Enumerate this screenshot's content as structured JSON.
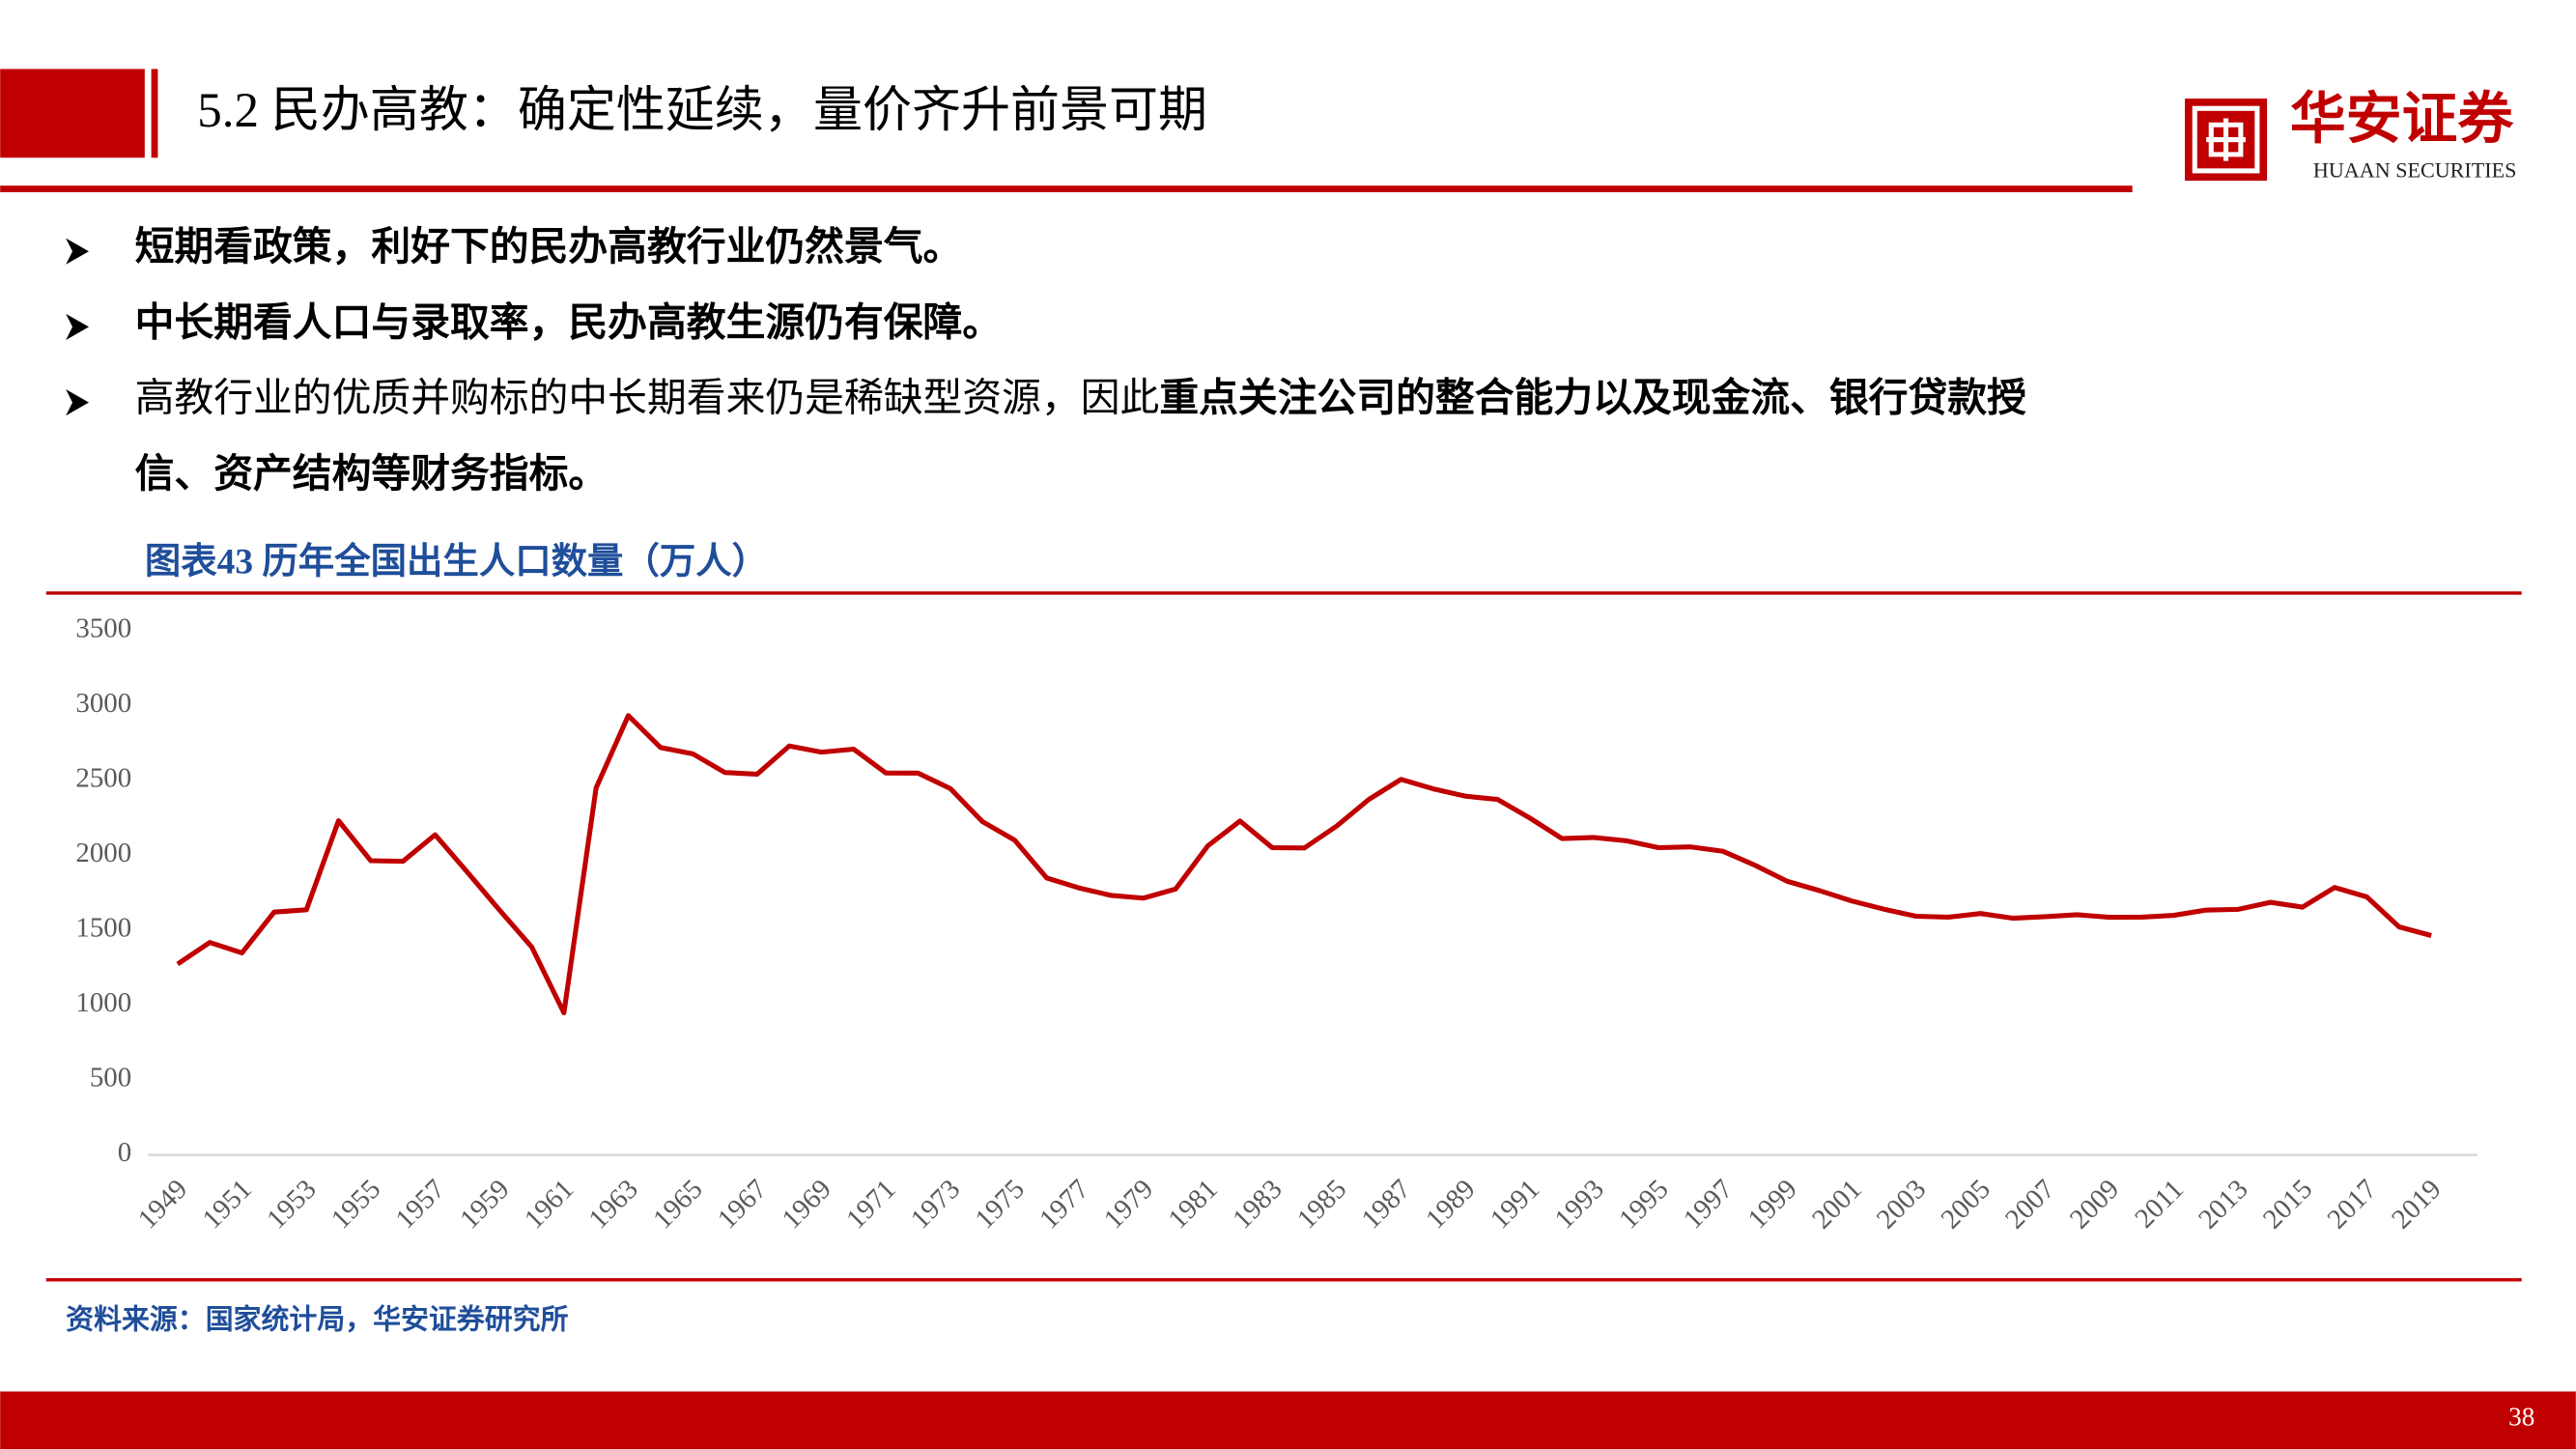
{
  "header": {
    "title": "5.2 民办高教：确定性延续，量价齐升前景可期"
  },
  "logo": {
    "name": "华安证券",
    "subtitle": "HUAAN SECURITIES"
  },
  "bullets": [
    [
      [
        {
          "text": "短期看政策，利好下的民办高教行业仍然景气。",
          "bold": true
        }
      ]
    ],
    [
      [
        {
          "text": "中长期看人口与录取率，民办高教生源仍有保障。",
          "bold": true
        }
      ]
    ],
    [
      [
        {
          "text": "高教行业的优质并购标的中长期看来仍是稀缺型资源，因此",
          "bold": false
        },
        {
          "text": "重点关注公司的整合能力以及现金流、银行贷款授",
          "bold": true
        }
      ],
      [
        {
          "text": "信、资产结构等财务指标。",
          "bold": true
        }
      ]
    ]
  ],
  "chart_data": {
    "type": "line",
    "title": "图表43  历年全国出生人口数量（万人）",
    "categories": [
      "1949",
      null,
      "1951",
      null,
      "1953",
      null,
      "1955",
      null,
      "1957",
      null,
      "1959",
      null,
      "1961",
      null,
      "1963",
      null,
      "1965",
      null,
      "1967",
      null,
      "1969",
      null,
      "1971",
      null,
      "1973",
      null,
      "1975",
      null,
      "1977",
      null,
      "1979",
      null,
      "1981",
      null,
      "1983",
      null,
      "1985",
      null,
      "1987",
      null,
      "1989",
      null,
      "1991",
      null,
      "1993",
      null,
      "1995",
      null,
      "1997",
      null,
      "1999",
      null,
      "2001",
      null,
      "2003",
      null,
      "2005",
      null,
      "2007",
      null,
      "2009",
      null,
      "2011",
      null,
      "2013",
      null,
      "2015",
      null,
      "2017",
      null,
      "2019"
    ],
    "values": [
      1275,
      1419,
      1349,
      1622,
      1637,
      2232,
      1965,
      1961,
      2138,
      1889,
      1635,
      1389,
      949,
      2451,
      2934,
      2721,
      2679,
      2554,
      2543,
      2731,
      2690,
      2710,
      2551,
      2550,
      2447,
      2226,
      2102,
      1849,
      1783,
      1733,
      1715,
      1776,
      2064,
      2230,
      2052,
      2050,
      2196,
      2374,
      2508,
      2445,
      2396,
      2374,
      2250,
      2113,
      2120,
      2098,
      2052,
      2057,
      2028,
      1934,
      1827,
      1765,
      1696,
      1641,
      1594,
      1588,
      1612,
      1581,
      1591,
      1604,
      1587,
      1588,
      1600,
      1635,
      1640,
      1687,
      1655,
      1786,
      1723,
      1523,
      1465
    ],
    "color": "#c00000",
    "ylim": [
      0,
      3500
    ],
    "yticks": [
      0,
      500,
      1000,
      1500,
      2000,
      2500,
      3000,
      3500
    ],
    "grid": false
  },
  "source": "资料来源：国家统计局，华安证券研究所",
  "page_number": "38"
}
